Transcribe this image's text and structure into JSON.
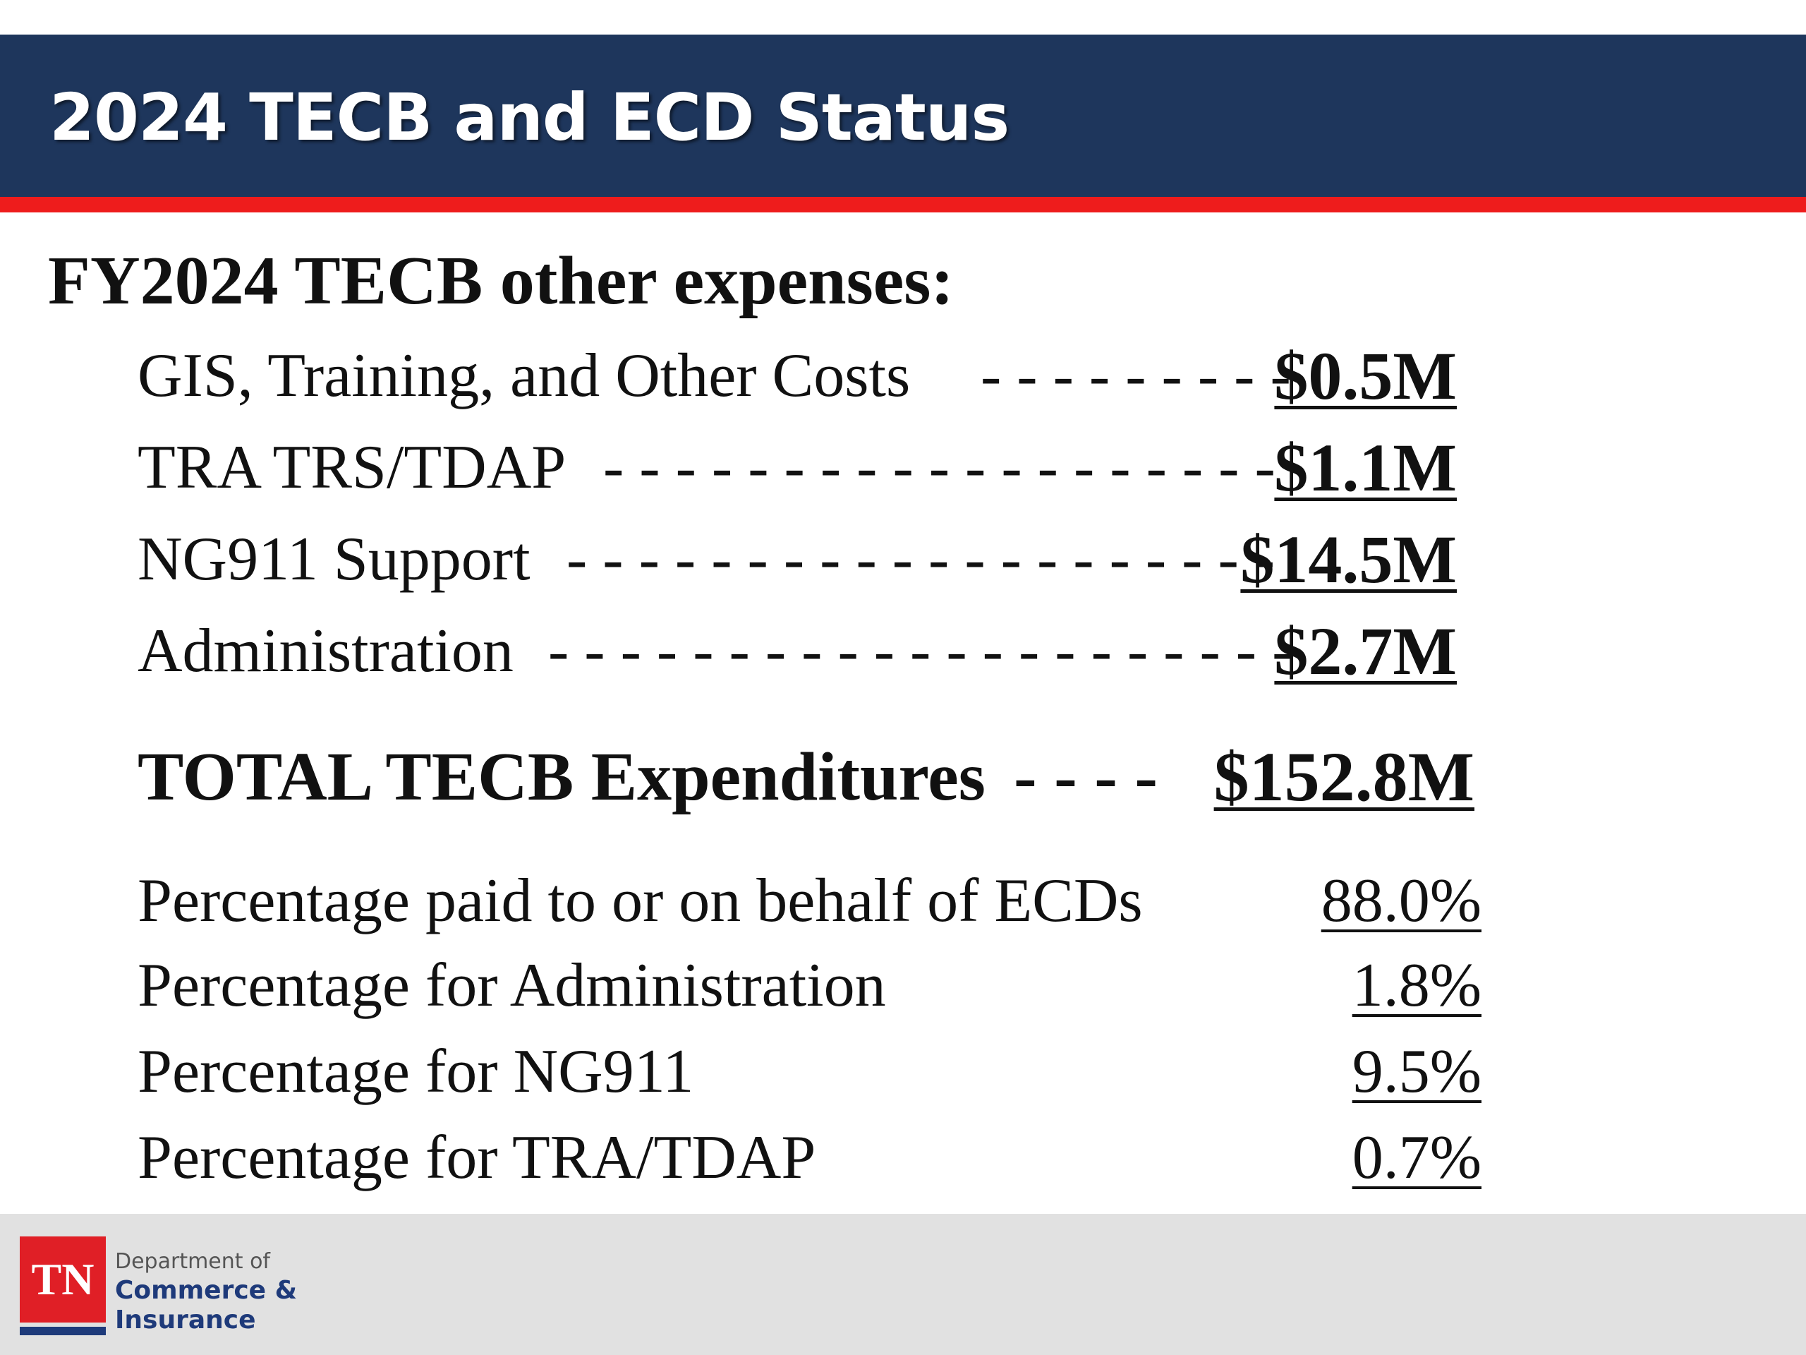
{
  "slide": {
    "title": "2024 TECB and ECD Status",
    "heading": "FY2024 TECB other expenses:"
  },
  "expenses": [
    {
      "label": "GIS, Training, and Other Costs",
      "dashes": "- - - - - - - - -",
      "value": "$0.5M"
    },
    {
      "label": "TRA TRS/TDAP",
      "dashes": "- - - - - - - - - - - - - - - - - - -",
      "value": "$1.1M"
    },
    {
      "label": "NG911 Support",
      "dashes": "- - - - - - - - - - - - - - - - - - - -",
      "value": "$14.5M"
    },
    {
      "label": "Administration",
      "dashes": "- - - - - - - - - - - - - - - - - - - - -",
      "value": "$2.7M"
    }
  ],
  "total": {
    "label": "TOTAL TECB Expenditures",
    "dashes": "- - - -",
    "value": "$152.8M"
  },
  "percentages": [
    {
      "label": "Percentage paid to or on behalf of ECDs",
      "value": "88.0%"
    },
    {
      "label": "Percentage for Administration",
      "value": "1.8%"
    },
    {
      "label": "Percentage for NG911",
      "value": "9.5%"
    },
    {
      "label": "Percentage for TRA/TDAP",
      "value": "0.7%"
    }
  ],
  "footer": {
    "logo_mark": "TN",
    "dept_line1": "Department of",
    "dept_line2": "Commerce &",
    "dept_line3": "Insurance"
  }
}
